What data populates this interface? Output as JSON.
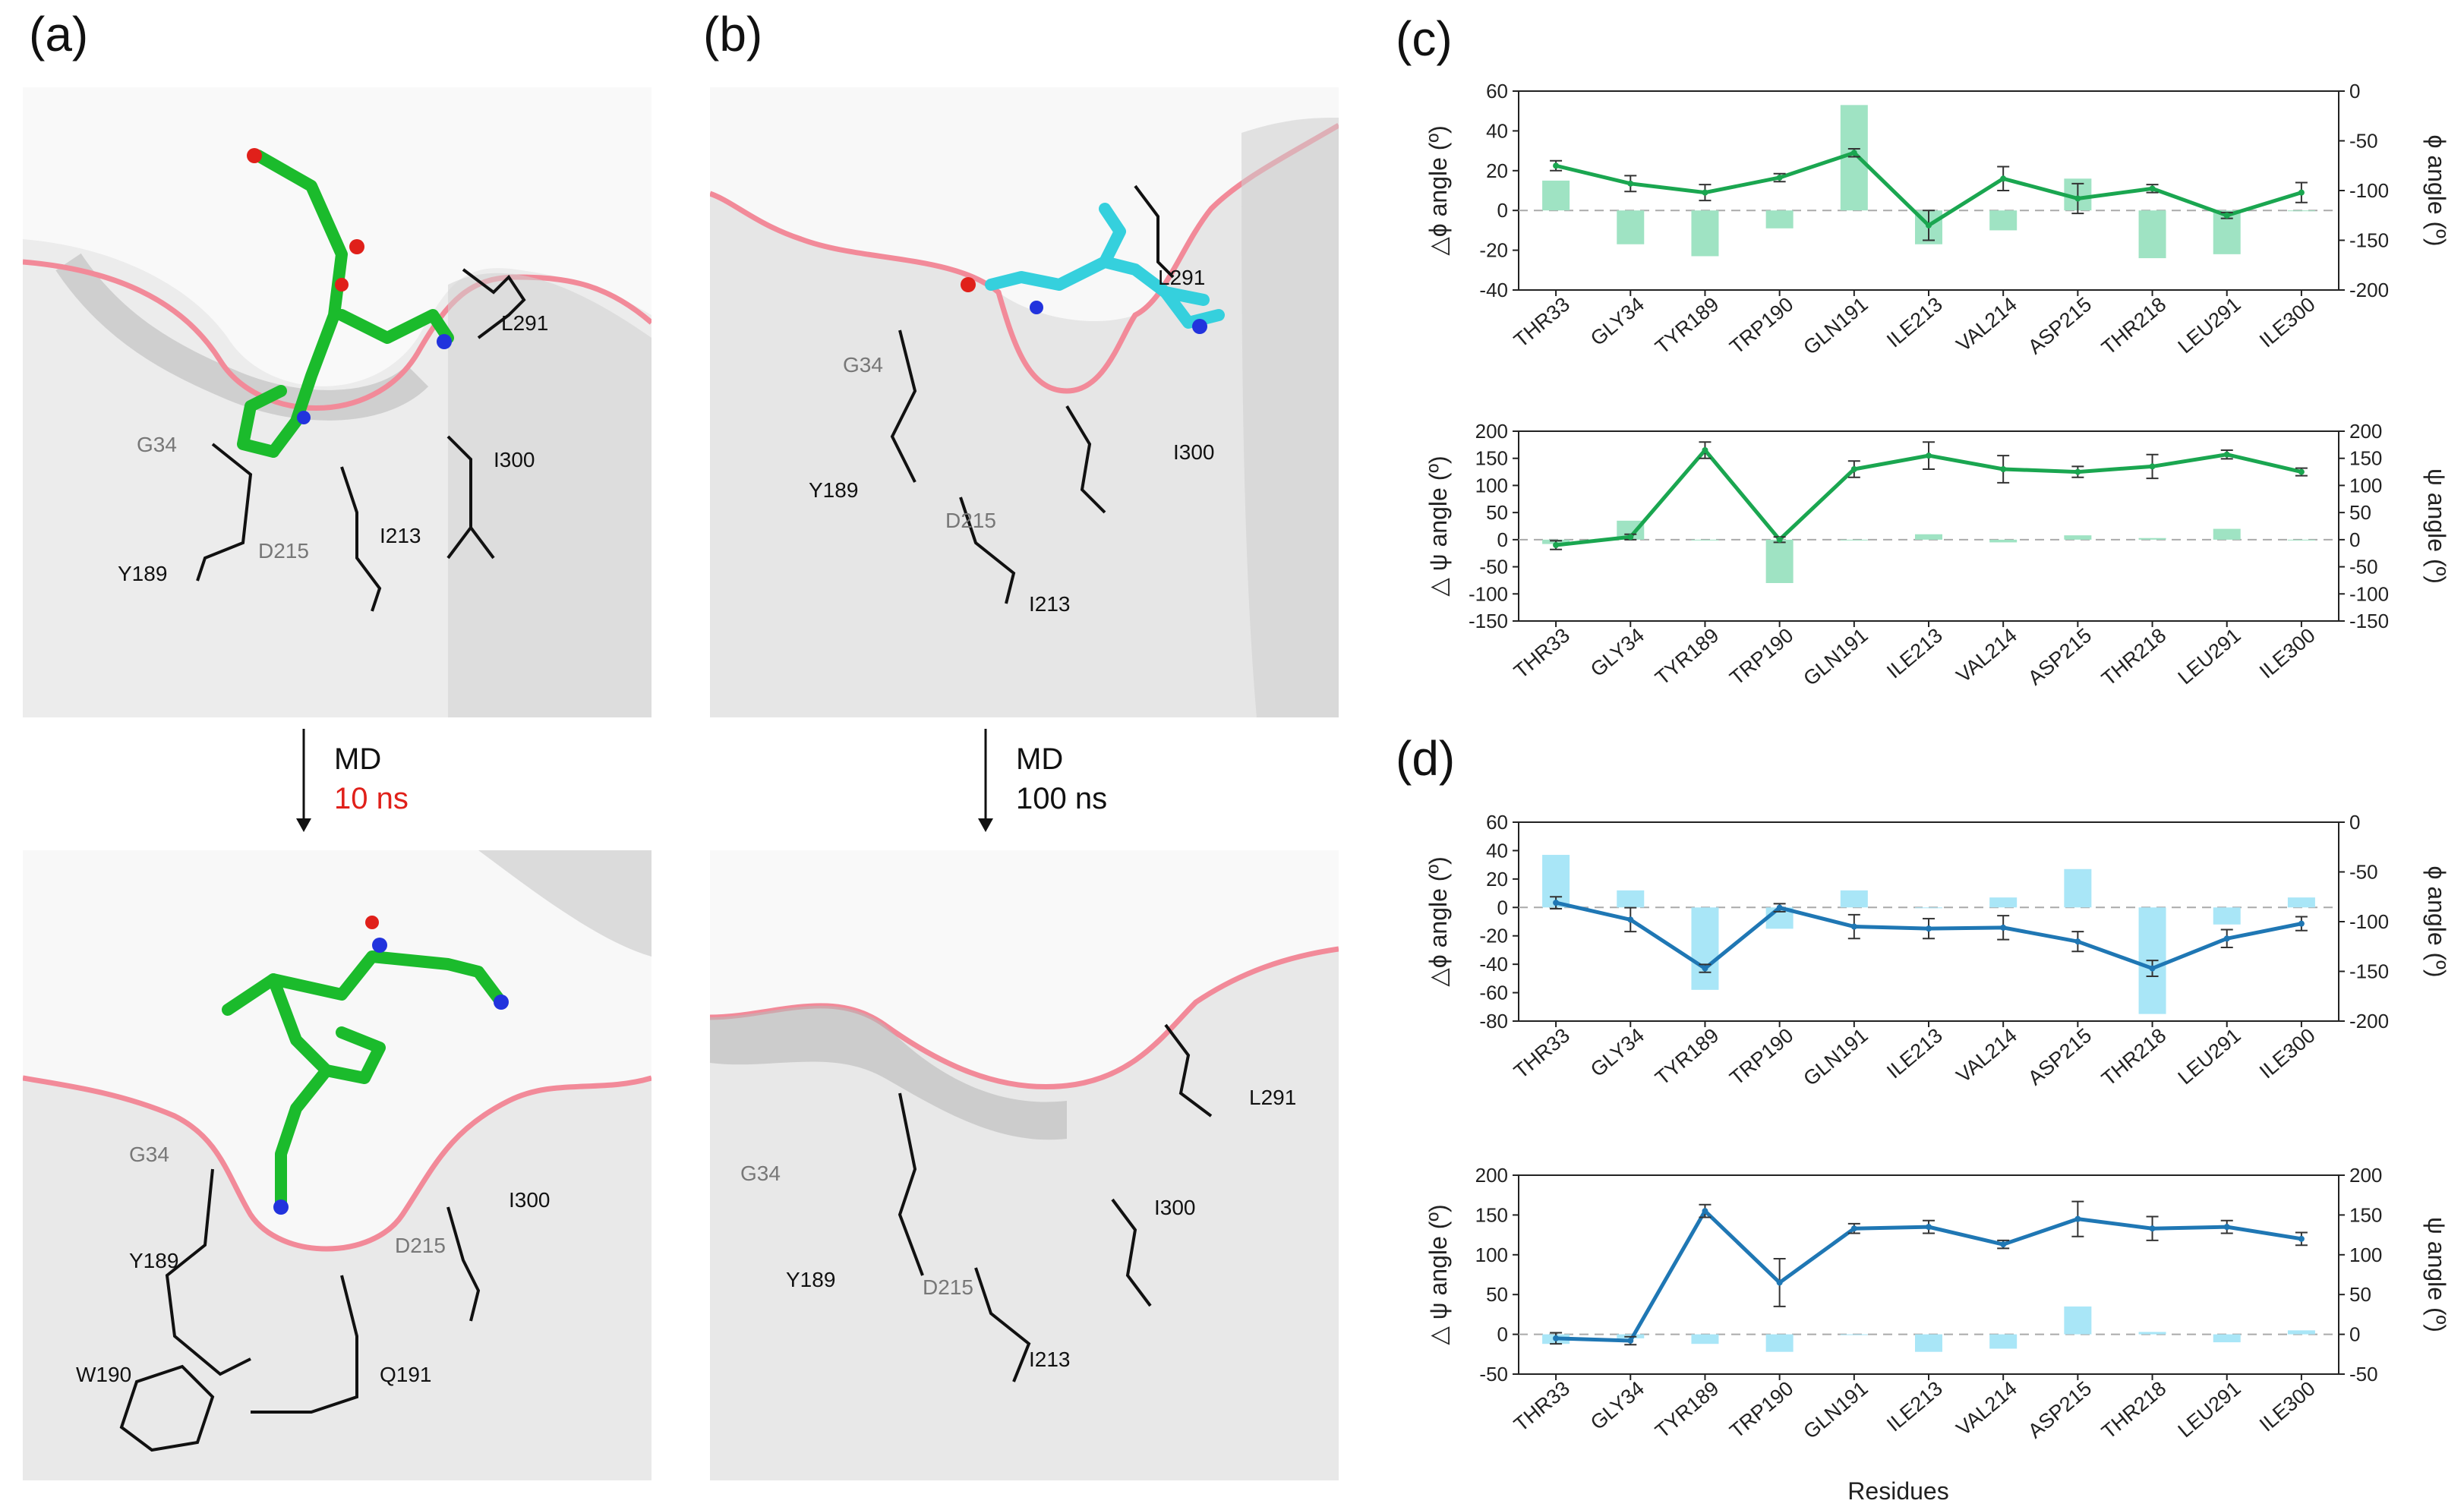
{
  "panels": {
    "a": {
      "label": "(a)",
      "md_label": "MD",
      "md_time": "10 ns",
      "top_residues": [
        "L291",
        "G34",
        "I300",
        "Y189",
        "D215",
        "I213"
      ],
      "bottom_residues": [
        "G34",
        "Y189",
        "I300",
        "D215",
        "W190",
        "Q191"
      ]
    },
    "b": {
      "label": "(b)",
      "md_label": "MD",
      "md_time": "100 ns",
      "top_residues": [
        "L291",
        "G34",
        "I300",
        "Y189",
        "D215",
        "I213"
      ],
      "bottom_residues": [
        "L291",
        "G34",
        "I300",
        "Y189",
        "D215",
        "I213"
      ]
    },
    "c": {
      "label": "(c)"
    },
    "d": {
      "label": "(d)"
    }
  },
  "colors": {
    "green": "#1aa650",
    "green_bar": "#9fe3c3",
    "blue": "#1f77b4",
    "blue_bar": "#a9e6f7",
    "red": "#e0201a"
  },
  "chart_data": [
    {
      "id": "c-phi",
      "type": "bar+line",
      "categories": [
        "THR33",
        "GLY34",
        "TYR189",
        "TRP190",
        "GLN191",
        "ILE213",
        "VAL214",
        "ASP215",
        "THR218",
        "LEU291",
        "ILE300"
      ],
      "ylabel": "△ϕ angle (º)",
      "ylabel_right": "ϕ angle (º)",
      "ylim": [
        -40,
        60
      ],
      "yticks": [
        -40,
        -20,
        0,
        20,
        40,
        60
      ],
      "y2lim": [
        -200,
        0
      ],
      "y2ticks": [
        0,
        -50,
        -100,
        -150,
        -200
      ],
      "series": [
        {
          "name": "Δϕ",
          "kind": "bar",
          "values": [
            15,
            -17,
            -23,
            -9,
            53,
            -17,
            -10,
            16,
            -24,
            -22,
            0
          ]
        },
        {
          "name": "ϕ",
          "kind": "line",
          "values": [
            -75,
            -93,
            -102,
            -87,
            -62,
            -135,
            -88,
            -108,
            -98,
            -125,
            -102
          ],
          "errors": [
            5,
            8,
            8,
            4,
            4,
            15,
            12,
            15,
            4,
            3,
            10
          ]
        }
      ]
    },
    {
      "id": "c-psi",
      "type": "bar+line",
      "categories": [
        "THR33",
        "GLY34",
        "TYR189",
        "TRP190",
        "GLN191",
        "ILE213",
        "VAL214",
        "ASP215",
        "THR218",
        "LEU291",
        "ILE300"
      ],
      "ylabel": "△ ψ angle (º)",
      "ylabel_right": "ψ angle (º)",
      "ylim": [
        -150,
        200
      ],
      "yticks": [
        -150,
        -100,
        -50,
        0,
        50,
        100,
        150,
        200
      ],
      "y2lim": [
        -150,
        200
      ],
      "y2ticks": [
        -150,
        -100,
        -50,
        0,
        50,
        100,
        150,
        200
      ],
      "series": [
        {
          "name": "Δψ",
          "kind": "bar",
          "values": [
            -8,
            35,
            0,
            -80,
            0,
            10,
            -5,
            8,
            3,
            20,
            0
          ]
        },
        {
          "name": "ψ",
          "kind": "line",
          "values": [
            -10,
            5,
            165,
            0,
            130,
            155,
            130,
            125,
            135,
            157,
            125
          ],
          "errors": [
            8,
            5,
            15,
            5,
            15,
            25,
            25,
            10,
            22,
            8,
            7
          ]
        }
      ]
    },
    {
      "id": "d-phi",
      "type": "bar+line",
      "categories": [
        "THR33",
        "GLY34",
        "TYR189",
        "TRP190",
        "GLN191",
        "ILE213",
        "VAL214",
        "ASP215",
        "THR218",
        "LEU291",
        "ILE300"
      ],
      "ylabel": "△ϕ angle (º)",
      "ylabel_right": "ϕ angle (º)",
      "ylim": [
        -80,
        60
      ],
      "yticks": [
        -80,
        -60,
        -40,
        -20,
        0,
        20,
        40,
        60
      ],
      "y2lim": [
        -200,
        0
      ],
      "y2ticks": [
        0,
        -50,
        -100,
        -150,
        -200
      ],
      "series": [
        {
          "name": "Δϕ",
          "kind": "bar",
          "values": [
            37,
            12,
            -58,
            -15,
            12,
            0,
            7,
            27,
            -75,
            -12,
            7
          ]
        },
        {
          "name": "ϕ",
          "kind": "line",
          "values": [
            -81,
            -98,
            -147,
            -86,
            -105,
            -107,
            -106,
            -120,
            -147,
            -117,
            -102
          ],
          "errors": [
            6,
            12,
            4,
            4,
            12,
            10,
            12,
            10,
            8,
            9,
            7
          ]
        }
      ]
    },
    {
      "id": "d-psi",
      "type": "bar+line",
      "categories": [
        "THR33",
        "GLY34",
        "TYR189",
        "TRP190",
        "GLN191",
        "ILE213",
        "VAL214",
        "ASP215",
        "THR218",
        "LEU291",
        "ILE300"
      ],
      "xlabel": "Residues",
      "ylabel": "△ ψ angle (º)",
      "ylabel_right": "ψ angle (º)",
      "ylim": [
        -50,
        200
      ],
      "yticks": [
        -50,
        0,
        50,
        100,
        150,
        200
      ],
      "y2lim": [
        -50,
        200
      ],
      "y2ticks": [
        -50,
        0,
        50,
        100,
        150,
        200
      ],
      "series": [
        {
          "name": "Δψ",
          "kind": "bar",
          "values": [
            -12,
            -5,
            -12,
            -22,
            0,
            -22,
            -18,
            35,
            3,
            -10,
            5
          ]
        },
        {
          "name": "ψ",
          "kind": "line",
          "values": [
            -5,
            -8,
            155,
            65,
            133,
            135,
            113,
            145,
            133,
            135,
            120
          ],
          "errors": [
            7,
            5,
            8,
            30,
            6,
            8,
            5,
            22,
            15,
            8,
            8
          ]
        }
      ]
    }
  ]
}
